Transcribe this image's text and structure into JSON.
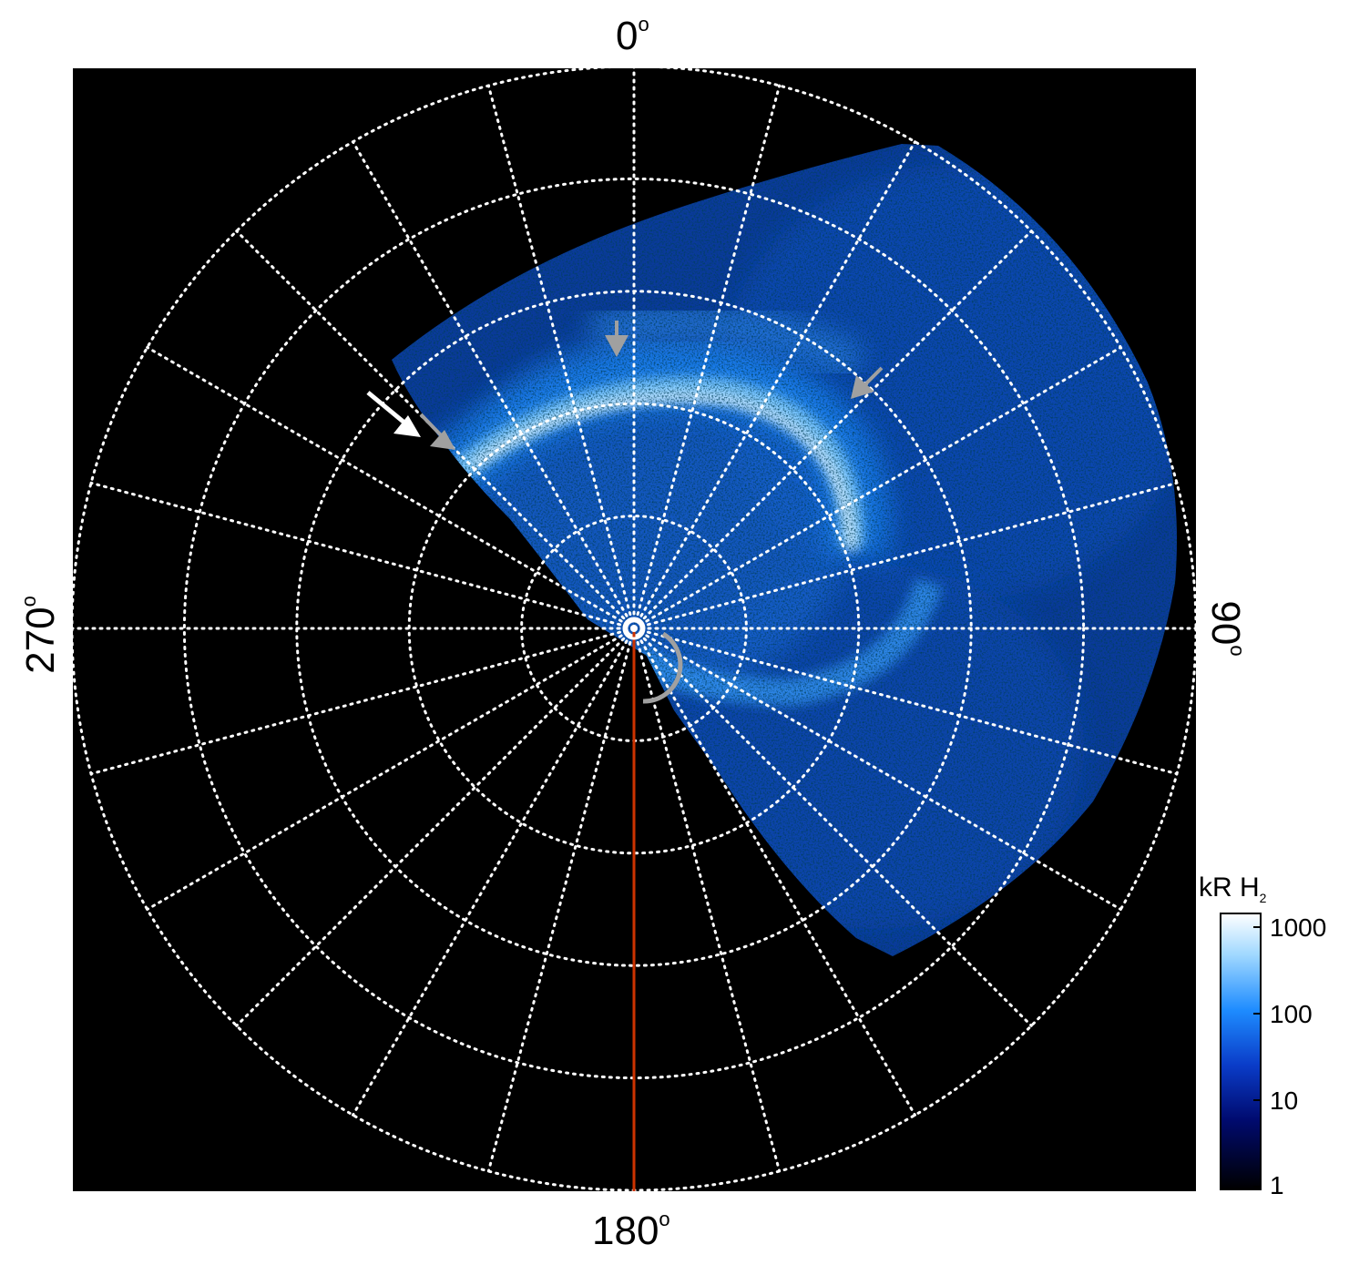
{
  "polar_labels": {
    "top": "0",
    "right": "90",
    "bottom": "180",
    "left": "270",
    "degree_symbol": "o"
  },
  "colorbar": {
    "title_main": "kR H",
    "title_sub": "2",
    "ticks": [
      "1000",
      "100",
      "10",
      "1"
    ],
    "colors": [
      "#000000",
      "#000a6e",
      "#0a3cc8",
      "#1e8cff",
      "#a0d8ff",
      "#ffffff"
    ]
  },
  "colors": {
    "background": "#000000",
    "grid": "#ffffff",
    "meridian_line": "#cc3300",
    "arrow_primary": "#ffffff",
    "arrow_secondary": "#a0a0a0"
  },
  "annotations": [
    "white-arrow",
    "gray-arrow",
    "gray-arrow",
    "gray-arrow",
    "red-meridian-line",
    "gray-arc",
    "pole-marker"
  ]
}
